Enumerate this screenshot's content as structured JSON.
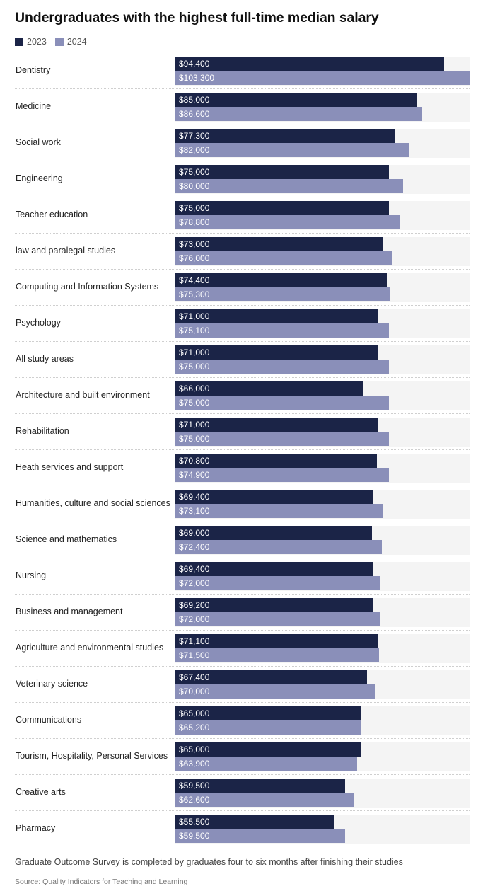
{
  "chart_data": {
    "type": "bar",
    "orientation": "horizontal",
    "title": "Undergraduates with the highest full-time median salary",
    "categories": [
      "Dentistry",
      "Medicine",
      "Social work",
      "Engineering",
      "Teacher education",
      "law and paralegal studies",
      "Computing and Information Systems",
      "Psychology",
      "All study areas",
      "Architecture and built environment",
      "Rehabilitation",
      "Heath services and support",
      "Humanities, culture and social sciences",
      "Science and mathematics",
      "Nursing",
      "Business and management",
      "Agriculture and environmental studies",
      "Veterinary science",
      "Communications",
      "Tourism, Hospitality, Personal Services",
      "Creative arts",
      "Pharmacy"
    ],
    "series": [
      {
        "name": "2023",
        "color": "#1b2447",
        "values": [
          94400,
          85000,
          77300,
          75000,
          75000,
          73000,
          74400,
          71000,
          71000,
          66000,
          71000,
          70800,
          69400,
          69000,
          69400,
          69200,
          71100,
          67400,
          65000,
          65000,
          59500,
          55500
        ],
        "labels": [
          "$94,400",
          "$85,000",
          "$77,300",
          "$75,000",
          "$75,000",
          "$73,000",
          "$74,400",
          "$71,000",
          "$71,000",
          "$66,000",
          "$71,000",
          "$70,800",
          "$69,400",
          "$69,000",
          "$69,400",
          "$69,200",
          "$71,100",
          "$67,400",
          "$65,000",
          "$65,000",
          "$59,500",
          "$55,500"
        ]
      },
      {
        "name": "2024",
        "color": "#8a8fb9",
        "values": [
          103300,
          86600,
          82000,
          80000,
          78800,
          76000,
          75300,
          75100,
          75000,
          75000,
          75000,
          74900,
          73100,
          72400,
          72000,
          72000,
          71500,
          70000,
          65200,
          63900,
          62600,
          59500
        ],
        "labels": [
          "$103,300",
          "$86,600",
          "$82,000",
          "$80,000",
          "$78,800",
          "$76,000",
          "$75,300",
          "$75,100",
          "$75,000",
          "$75,000",
          "$75,000",
          "$74,900",
          "$73,100",
          "$72,400",
          "$72,000",
          "$72,000",
          "$71,500",
          "$70,000",
          "$65,200",
          "$63,900",
          "$62,600",
          "$59,500"
        ]
      }
    ],
    "xlim": [
      0,
      103300
    ],
    "legend": "top-left",
    "note": "Graduate Outcome Survey is completed by graduates four to six months after finishing their studies",
    "source": "Source: Quality Indicators for Teaching and Learning"
  }
}
